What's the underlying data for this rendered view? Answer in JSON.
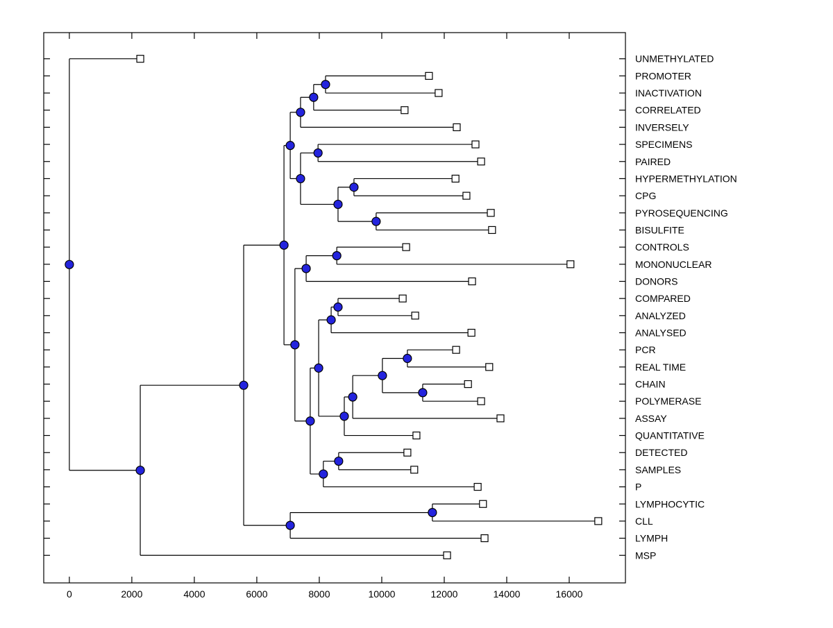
{
  "chart_data": {
    "type": "dendrogram",
    "subtype": "phylogenetic-tree-horizontal",
    "title": "",
    "xlabel": "",
    "ylabel": "",
    "orientation": "root-left-leaves-right",
    "grid": false,
    "legend": null,
    "x_axis": {
      "min": -820,
      "max": 17800,
      "ticks": [
        0,
        2000,
        4000,
        6000,
        8000,
        10000,
        12000,
        14000,
        16000
      ],
      "tick_labels": [
        "0",
        "2000",
        "4000",
        "6000",
        "8000",
        "10000",
        "12000",
        "14000",
        "16000"
      ]
    },
    "styles": {
      "branch_color": "#000000",
      "internal_node_marker": "filled circle",
      "internal_node_fill": "#2424dd",
      "internal_node_stroke": "#000000",
      "leaf_marker": "open square",
      "leaf_marker_fill": "#ffffff",
      "leaf_marker_stroke": "#000000",
      "background": "#ffffff",
      "text_color": "#000000"
    },
    "leaves": [
      {
        "id": "L1",
        "label": "UNMETHYLATED",
        "distance": 2270
      },
      {
        "id": "L2",
        "label": "PROMOTER",
        "distance": 11510
      },
      {
        "id": "L3",
        "label": "INACTIVATION",
        "distance": 11820
      },
      {
        "id": "L4",
        "label": "CORRELATED",
        "distance": 10730
      },
      {
        "id": "L5",
        "label": "INVERSELY",
        "distance": 12400
      },
      {
        "id": "L6",
        "label": "SPECIMENS",
        "distance": 13000
      },
      {
        "id": "L7",
        "label": "PAIRED",
        "distance": 13180
      },
      {
        "id": "L8",
        "label": "HYPERMETHYLATION",
        "distance": 12360
      },
      {
        "id": "L9",
        "label": "CPG",
        "distance": 12710
      },
      {
        "id": "L10",
        "label": "PYROSEQUENCING",
        "distance": 13490
      },
      {
        "id": "L11",
        "label": "BISULFITE",
        "distance": 13530
      },
      {
        "id": "L12",
        "label": "CONTROLS",
        "distance": 10780
      },
      {
        "id": "L13",
        "label": "MONONUCLEAR",
        "distance": 16040
      },
      {
        "id": "L14",
        "label": "DONORS",
        "distance": 12890
      },
      {
        "id": "L15",
        "label": "COMPARED",
        "distance": 10670
      },
      {
        "id": "L16",
        "label": "ANALYZED",
        "distance": 11070
      },
      {
        "id": "L17",
        "label": "ANALYSED",
        "distance": 12870
      },
      {
        "id": "L18",
        "label": "PCR",
        "distance": 12380
      },
      {
        "id": "L19",
        "label": "REAL TIME",
        "distance": 13440
      },
      {
        "id": "L20",
        "label": "CHAIN",
        "distance": 12760
      },
      {
        "id": "L21",
        "label": "POLYMERASE",
        "distance": 13180
      },
      {
        "id": "L22",
        "label": "ASSAY",
        "distance": 13800
      },
      {
        "id": "L23",
        "label": "QUANTITATIVE",
        "distance": 11110
      },
      {
        "id": "L24",
        "label": "DETECTED",
        "distance": 10820
      },
      {
        "id": "L25",
        "label": "SAMPLES",
        "distance": 11040
      },
      {
        "id": "L26",
        "label": "P",
        "distance": 13070
      },
      {
        "id": "L27",
        "label": "LYMPHOCYTIC",
        "distance": 13240
      },
      {
        "id": "L28",
        "label": "CLL",
        "distance": 16930
      },
      {
        "id": "L29",
        "label": "LYMPH",
        "distance": 13290
      },
      {
        "id": "L30",
        "label": "MSP",
        "distance": 12090
      }
    ],
    "internal_nodes": [
      {
        "id": "N1",
        "children": [
          "L2",
          "L3"
        ],
        "distance": 8200
      },
      {
        "id": "N2",
        "children": [
          "N1",
          "L4"
        ],
        "distance": 7820
      },
      {
        "id": "N3",
        "children": [
          "N2",
          "L5"
        ],
        "distance": 7400
      },
      {
        "id": "N4",
        "children": [
          "L6",
          "L7"
        ],
        "distance": 7960
      },
      {
        "id": "N5",
        "children": [
          "L8",
          "L9"
        ],
        "distance": 9110
      },
      {
        "id": "N6",
        "children": [
          "L10",
          "L11"
        ],
        "distance": 9820
      },
      {
        "id": "N7",
        "children": [
          "N5",
          "N6"
        ],
        "distance": 8600
      },
      {
        "id": "N8",
        "children": [
          "N4",
          "N7"
        ],
        "distance": 7400
      },
      {
        "id": "N9",
        "children": [
          "N3",
          "N8"
        ],
        "distance": 7070
      },
      {
        "id": "N10",
        "children": [
          "L12",
          "L13"
        ],
        "distance": 8560
      },
      {
        "id": "N11",
        "children": [
          "N10",
          "L14"
        ],
        "distance": 7580
      },
      {
        "id": "N12",
        "children": [
          "L15",
          "L16"
        ],
        "distance": 8600
      },
      {
        "id": "N13",
        "children": [
          "N12",
          "L17"
        ],
        "distance": 8380
      },
      {
        "id": "N14",
        "children": [
          "L18",
          "L19"
        ],
        "distance": 10820
      },
      {
        "id": "N15",
        "children": [
          "L20",
          "L21"
        ],
        "distance": 11310
      },
      {
        "id": "N16",
        "children": [
          "N14",
          "N15"
        ],
        "distance": 10020
      },
      {
        "id": "N17",
        "children": [
          "N16",
          "L22"
        ],
        "distance": 9070
      },
      {
        "id": "N18",
        "children": [
          "N17",
          "L23"
        ],
        "distance": 8800
      },
      {
        "id": "N19",
        "children": [
          "N13",
          "N18"
        ],
        "distance": 7980
      },
      {
        "id": "N20",
        "children": [
          "L24",
          "L25"
        ],
        "distance": 8620
      },
      {
        "id": "N21",
        "children": [
          "N20",
          "L26"
        ],
        "distance": 8130
      },
      {
        "id": "N22",
        "children": [
          "N19",
          "N21"
        ],
        "distance": 7710
      },
      {
        "id": "N23",
        "children": [
          "N11",
          "N22"
        ],
        "distance": 7220
      },
      {
        "id": "N24",
        "children": [
          "N9",
          "N23"
        ],
        "distance": 6870
      },
      {
        "id": "N25",
        "children": [
          "L27",
          "L28"
        ],
        "distance": 11620
      },
      {
        "id": "N26",
        "children": [
          "N25",
          "L29"
        ],
        "distance": 7070
      },
      {
        "id": "N27",
        "children": [
          "N24",
          "N26"
        ],
        "distance": 5580
      },
      {
        "id": "N28",
        "children": [
          "N27",
          "L30"
        ],
        "distance": 2270
      },
      {
        "id": "N29",
        "children": [
          "L1",
          "N28"
        ],
        "distance": 0
      }
    ]
  }
}
